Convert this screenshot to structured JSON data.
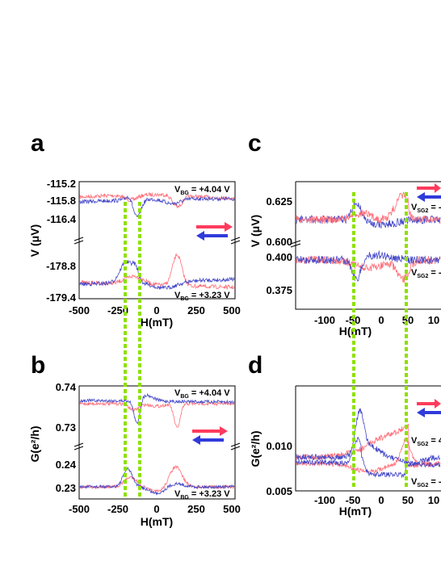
{
  "colors": {
    "red": "#ff3b5c",
    "blue": "#2f3bdb",
    "green": "#8fe000",
    "trace_red": "#ff6e78",
    "trace_blue": "#4448c8"
  },
  "chart_data": [
    {
      "panel": "a",
      "type": "line",
      "xlabel": "H(mT)",
      "ylabel": "V (μV)",
      "xlim": [
        -500,
        500
      ],
      "xticks": [
        "-500",
        "-250",
        "0",
        "250",
        "500"
      ],
      "ylim_upper": [
        -116.6,
        -115.1
      ],
      "yticks_upper": [
        "-115.2",
        "-115.8",
        "-116.4"
      ],
      "ylim_lower": [
        -179.6,
        -178.4
      ],
      "yticks_lower": [
        "-178.8",
        "-179.4"
      ],
      "annotation_top": {
        "main": "V",
        "sub": "BG",
        "rest": " = +4.04 V"
      },
      "annotation_bottom": {
        "main": "V",
        "sub": "BG",
        "rest": " = +3.23 V"
      }
    },
    {
      "panel": "b",
      "type": "line",
      "xlabel": "H(mT)",
      "ylabel": "G(e²/h)",
      "xlim": [
        -500,
        500
      ],
      "xticks": [
        "-500",
        "-250",
        "0",
        "250",
        "500"
      ],
      "ylim_upper": [
        0.727,
        0.741
      ],
      "yticks_upper": [
        "0.74",
        "0.73"
      ],
      "ylim_lower": [
        0.2265,
        0.2425
      ],
      "yticks_lower": [
        "0.24",
        "0.23"
      ],
      "annotation_top": {
        "main": "V",
        "sub": "BG",
        "rest": " = +4.04 V"
      },
      "annotation_bottom": {
        "main": "V",
        "sub": "BG",
        "rest": " = +3.23 V"
      }
    },
    {
      "panel": "c",
      "type": "line",
      "xlabel": "H(mT)",
      "ylabel": "V (μV)",
      "xlim": [
        -150,
        150
      ],
      "xticks": [
        "-100",
        "-50",
        "0",
        "50",
        "10"
      ],
      "ylim": [
        0.365,
        0.645
      ],
      "yticks": [
        "0.625",
        "0.600",
        "0.400",
        "0.375"
      ],
      "annotation_top": {
        "main": "V",
        "sub": "SG2",
        "rest": " = -"
      },
      "annotation_bottom": {
        "main": "V",
        "sub": "SG2",
        "rest": " = -"
      }
    },
    {
      "panel": "d",
      "type": "line",
      "xlabel": "H(mT)",
      "ylabel": "G(e²/h)",
      "xlim": [
        -150,
        150
      ],
      "xticks": [
        "-100",
        "-50",
        "0",
        "50",
        "10"
      ],
      "ylim": [
        0.005,
        0.0145
      ],
      "yticks": [
        "0.010",
        "0.005"
      ],
      "annotation_top": {
        "main": "V",
        "sub": "SG2",
        "rest": " = 4"
      },
      "annotation_bottom": {
        "main": "V",
        "sub": "SG2",
        "rest": " = -"
      }
    }
  ]
}
